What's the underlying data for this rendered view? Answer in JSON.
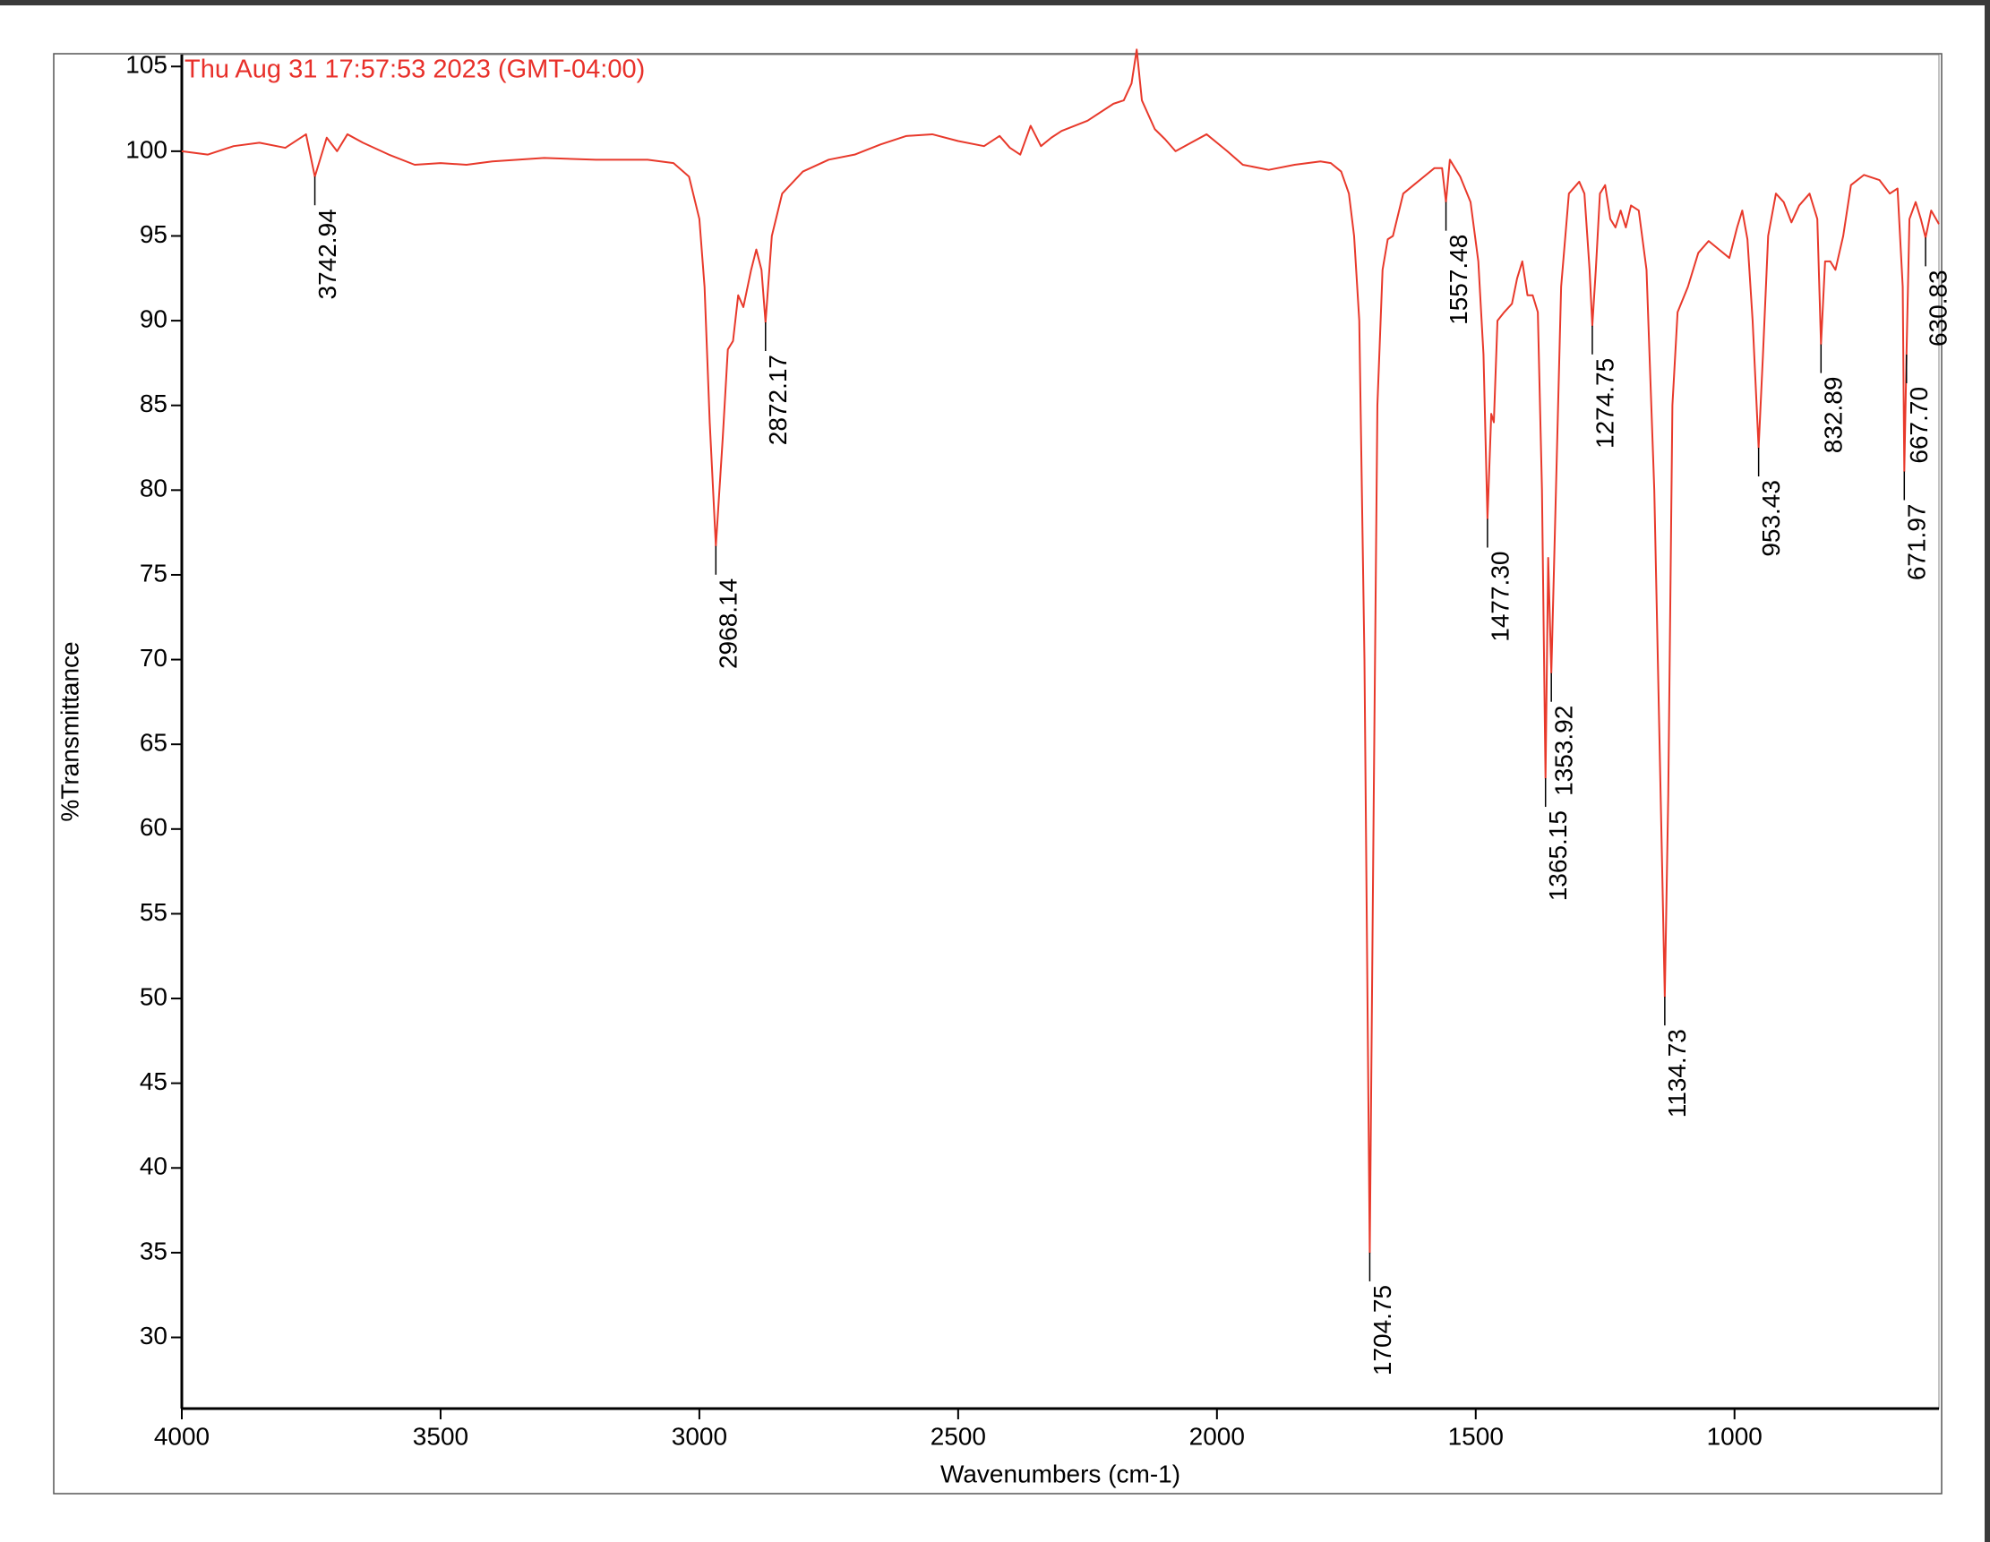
{
  "chart_data": {
    "type": "line",
    "title": "Thu Aug 31 17:57:53 2023 (GMT-04:00)",
    "x_label": "Wavenumbers (cm-1)",
    "y_label": "%Transmittance",
    "color": "#e8392b",
    "xlim": [
      4000,
      605
    ],
    "ylim": [
      25.8,
      105.7
    ],
    "xticks": [
      4000,
      3500,
      3000,
      2500,
      2000,
      1500,
      1000
    ],
    "yticks": [
      30,
      35,
      40,
      45,
      50,
      55,
      60,
      65,
      70,
      75,
      80,
      85,
      90,
      95,
      100,
      105
    ],
    "x": [
      4000,
      3950,
      3900,
      3850,
      3800,
      3760,
      3742.94,
      3720,
      3700,
      3680,
      3650,
      3600,
      3550,
      3500,
      3450,
      3400,
      3300,
      3200,
      3100,
      3050,
      3020,
      3000,
      2990,
      2980,
      2968.14,
      2955,
      2945,
      2935,
      2925,
      2915,
      2900,
      2890,
      2880,
      2872.17,
      2860,
      2840,
      2800,
      2750,
      2700,
      2650,
      2600,
      2550,
      2500,
      2450,
      2420,
      2400,
      2380,
      2360,
      2340,
      2320,
      2300,
      2250,
      2200,
      2180,
      2165,
      2155,
      2145,
      2120,
      2100,
      2080,
      2050,
      2020,
      2000,
      1980,
      1950,
      1900,
      1850,
      1800,
      1780,
      1760,
      1745,
      1735,
      1725,
      1715,
      1704.75,
      1697,
      1690,
      1680,
      1670,
      1660,
      1640,
      1620,
      1600,
      1580,
      1565,
      1557.48,
      1550,
      1530,
      1510,
      1495,
      1485,
      1477.3,
      1470,
      1465,
      1458,
      1445,
      1430,
      1420,
      1410,
      1400,
      1390,
      1380,
      1372,
      1365.15,
      1360,
      1353.92,
      1345,
      1335,
      1320,
      1300,
      1290,
      1280,
      1274.75,
      1268,
      1260,
      1250,
      1240,
      1230,
      1220,
      1210,
      1200,
      1185,
      1170,
      1155,
      1140,
      1134.73,
      1128,
      1120,
      1110,
      1090,
      1070,
      1050,
      1030,
      1010,
      995,
      985,
      975,
      965,
      953.43,
      945,
      935,
      920,
      905,
      890,
      875,
      855,
      840,
      832.89,
      825,
      815,
      805,
      790,
      775,
      750,
      720,
      700,
      685,
      675,
      671.97,
      667.7,
      662,
      650,
      640,
      630.83,
      620,
      605
    ],
    "values": [
      100,
      99.8,
      100.3,
      100.5,
      100.2,
      101,
      98.5,
      100.8,
      100,
      101,
      100.5,
      99.8,
      99.2,
      99.3,
      99.2,
      99.4,
      99.6,
      99.5,
      99.5,
      99.3,
      98.5,
      96,
      92,
      84,
      76.7,
      83,
      88.3,
      88.8,
      91.5,
      90.8,
      93,
      94.2,
      93,
      89.9,
      95,
      97.5,
      98.8,
      99.5,
      99.8,
      100.4,
      100.9,
      101,
      100.6,
      100.3,
      100.9,
      100.2,
      99.8,
      101.5,
      100.3,
      100.8,
      101.2,
      101.8,
      102.8,
      103,
      104,
      106,
      103,
      101.3,
      100.7,
      100,
      100.5,
      101,
      100.5,
      100,
      99.2,
      98.9,
      99.2,
      99.4,
      99.3,
      98.8,
      97.5,
      95,
      90,
      70,
      35,
      62,
      85,
      93,
      94.8,
      95,
      97.5,
      98,
      98.5,
      99,
      99,
      97,
      99.5,
      98.5,
      97,
      93.5,
      88,
      78.3,
      84.5,
      84,
      90,
      90.5,
      91,
      92.5,
      93.5,
      91.5,
      91.5,
      90.5,
      80,
      63,
      76,
      69.2,
      80,
      92,
      97.5,
      98.2,
      97.5,
      93,
      89.7,
      93,
      97.5,
      98,
      96,
      95.5,
      96.5,
      95.5,
      96.8,
      96.5,
      93,
      80,
      58,
      50.1,
      62,
      85,
      90.5,
      92,
      94,
      94.7,
      94.2,
      93.7,
      95.5,
      96.5,
      94.8,
      90,
      82.5,
      88,
      95,
      97.5,
      97,
      95.8,
      96.8,
      97.5,
      96,
      88.6,
      93.5,
      93.5,
      93,
      95,
      98,
      98.6,
      98.3,
      97.5,
      97.8,
      92,
      81.1,
      88,
      96,
      97,
      96,
      94.9,
      96.5,
      95.7
    ],
    "annotations": [
      {
        "x": 3742.94,
        "y": 98.5,
        "label": "3742.94"
      },
      {
        "x": 2968.14,
        "y": 76.7,
        "label": "2968.14"
      },
      {
        "x": 2872.17,
        "y": 89.9,
        "label": "2872.17"
      },
      {
        "x": 1704.75,
        "y": 35,
        "label": "1704.75"
      },
      {
        "x": 1557.48,
        "y": 97,
        "label": "1557.48"
      },
      {
        "x": 1477.3,
        "y": 78.3,
        "label": "1477.30"
      },
      {
        "x": 1365.15,
        "y": 63,
        "label": "1365.15"
      },
      {
        "x": 1353.92,
        "y": 69.2,
        "label": "1353.92"
      },
      {
        "x": 1274.75,
        "y": 89.7,
        "label": "1274.75"
      },
      {
        "x": 1134.73,
        "y": 50.1,
        "label": "1134.73"
      },
      {
        "x": 953.43,
        "y": 82.5,
        "label": "953.43"
      },
      {
        "x": 832.89,
        "y": 88.6,
        "label": "832.89"
      },
      {
        "x": 671.97,
        "y": 81.1,
        "label": "671.97"
      },
      {
        "x": 667.7,
        "y": 88,
        "label": "667.70"
      },
      {
        "x": 630.83,
        "y": 94.9,
        "label": "630.83"
      }
    ]
  }
}
